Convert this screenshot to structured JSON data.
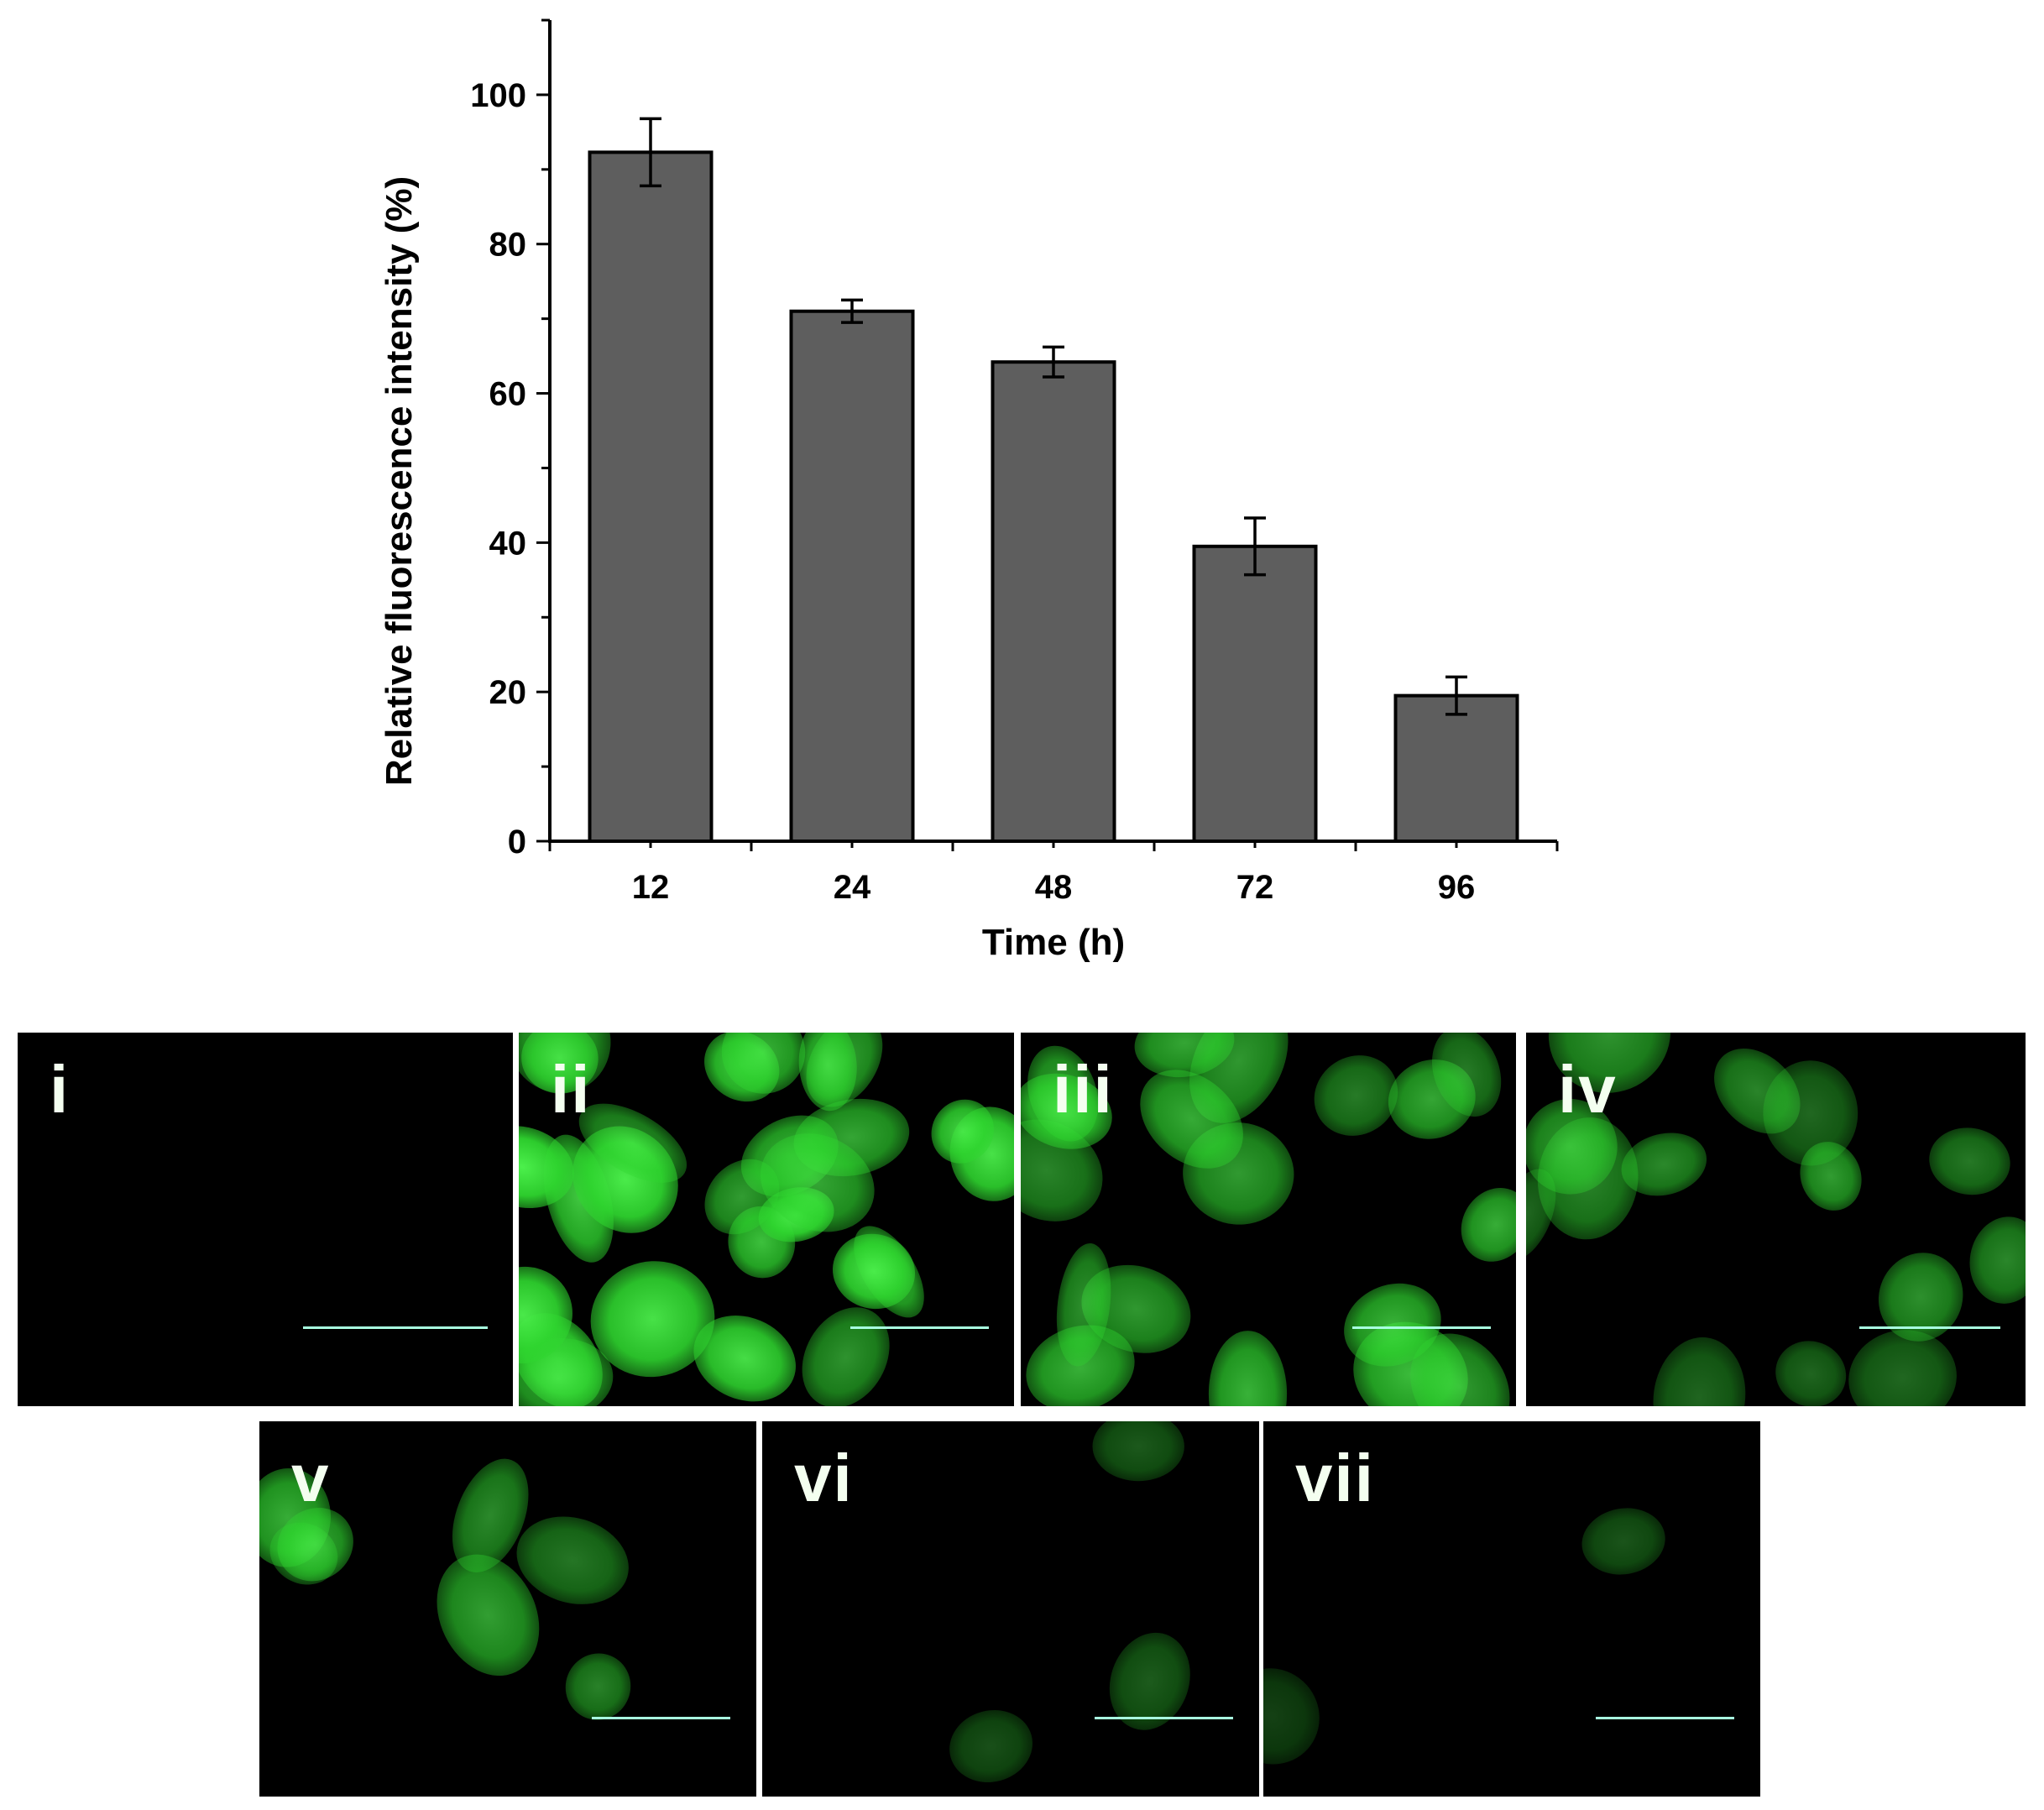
{
  "chart_data": {
    "type": "bar",
    "xlabel": "Time (h)",
    "ylabel": "Relative fluorescence intensity (%)",
    "categories": [
      "12",
      "24",
      "48",
      "72",
      "96"
    ],
    "values": [
      92.3,
      71.0,
      64.2,
      39.5,
      19.5
    ],
    "errors": [
      4.5,
      1.5,
      2.0,
      3.8,
      2.5
    ],
    "ylim": [
      0,
      110
    ],
    "yticks": [
      "0",
      "20",
      "40",
      "60",
      "80",
      "100"
    ],
    "grid": false,
    "bar_color": "#5e5e5e"
  },
  "panels": [
    {
      "label": "i",
      "density": 0
    },
    {
      "label": "ii",
      "density": 1.0
    },
    {
      "label": "iii",
      "density": 0.75
    },
    {
      "label": "iv",
      "density": 0.5
    },
    {
      "label": "v",
      "density": 0.6
    },
    {
      "label": "vi",
      "density": 0.2
    },
    {
      "label": "vii",
      "density": 0.12
    }
  ],
  "colors": {
    "fluorescence": "#2fd62f",
    "fluorescence_bright": "#4cf04c",
    "scale_bar": "#a8ffe0"
  }
}
